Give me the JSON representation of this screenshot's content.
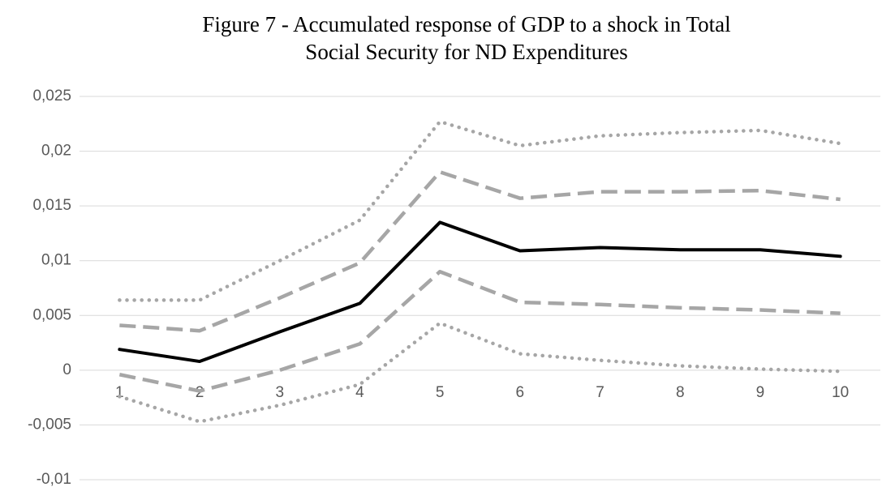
{
  "chart_data": {
    "type": "line",
    "title": [
      "Figure 7 - Accumulated response of GDP to a shock in Total",
      "Social Security for ND Expenditures"
    ],
    "categories": [
      "1",
      "2",
      "3",
      "4",
      "5",
      "6",
      "7",
      "8",
      "9",
      "10"
    ],
    "series": [
      {
        "color": "#a6a6a6",
        "line_style": "dotted",
        "values": [
          0.0064,
          0.0064,
          0.01,
          0.0137,
          0.0227,
          0.0205,
          0.0214,
          0.0217,
          0.0219,
          0.0207
        ]
      },
      {
        "color": "#a6a6a6",
        "line_style": "dashed",
        "values": [
          0.0041,
          0.0036,
          0.0066,
          0.0098,
          0.0181,
          0.0157,
          0.0163,
          0.0163,
          0.0164,
          0.0156
        ]
      },
      {
        "color": "#000000",
        "line_style": "solid",
        "values": [
          0.0019,
          0.0008,
          0.0035,
          0.0061,
          0.0135,
          0.0109,
          0.0112,
          0.011,
          0.011,
          0.0104
        ]
      },
      {
        "color": "#a6a6a6",
        "line_style": "dashed",
        "values": [
          -0.0004,
          -0.0019,
          0.0,
          0.0024,
          0.009,
          0.0062,
          0.006,
          0.0057,
          0.0055,
          0.0052
        ]
      },
      {
        "color": "#a6a6a6",
        "line_style": "dotted",
        "values": [
          -0.0024,
          -0.0047,
          -0.0032,
          -0.0013,
          0.0043,
          0.0015,
          0.0009,
          0.0004,
          0.0001,
          -0.0001
        ]
      }
    ],
    "ylim": [
      -0.01,
      0.025
    ],
    "yticks": [
      {
        "value": -0.01,
        "label": "-0,01"
      },
      {
        "value": -0.005,
        "label": "-0,005"
      },
      0,
      {
        "value": 0.005,
        "label": "0,005"
      },
      {
        "value": 0.01,
        "label": "0,01"
      },
      {
        "value": 0.015,
        "label": "0,015"
      },
      {
        "value": 0.02,
        "label": "0,02"
      },
      {
        "value": 0.025,
        "label": "0,025"
      }
    ],
    "grid": true
  }
}
